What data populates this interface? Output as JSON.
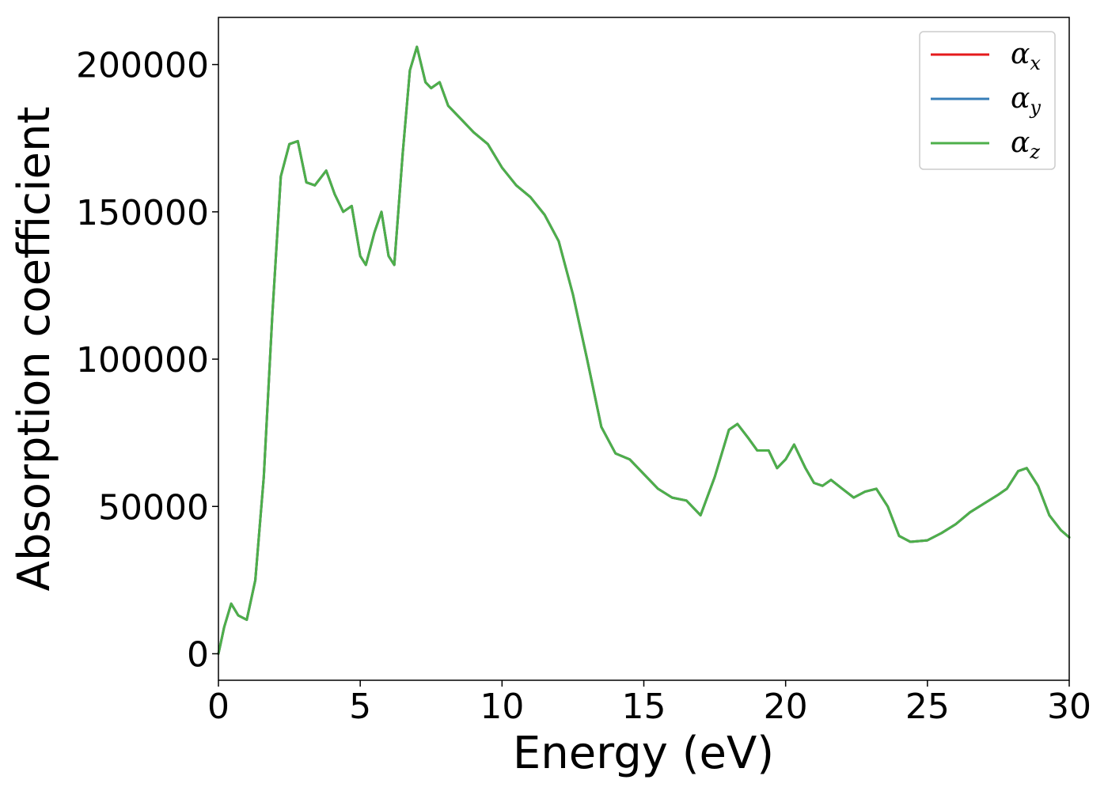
{
  "chart_data": {
    "type": "line",
    "xlabel": "Energy (eV)",
    "ylabel": "Absorption coefficient",
    "xlim": [
      0,
      30
    ],
    "ylim": [
      -9000,
      216000
    ],
    "xticks": [
      0,
      5,
      10,
      15,
      20,
      25,
      30
    ],
    "yticks": [
      0,
      50000,
      100000,
      150000,
      200000
    ],
    "grid": false,
    "legend_position": "top-right",
    "series": [
      {
        "name": "α",
        "subscript": "x",
        "color": "#e41a1c"
      },
      {
        "name": "α",
        "subscript": "y",
        "color": "#377eb8"
      },
      {
        "name": "α",
        "subscript": "z",
        "color": "#4daf4a"
      }
    ],
    "x": [
      0,
      0.2,
      0.45,
      0.7,
      1.0,
      1.3,
      1.6,
      1.9,
      2.2,
      2.5,
      2.8,
      3.1,
      3.4,
      3.8,
      4.1,
      4.4,
      4.7,
      5.0,
      5.2,
      5.5,
      5.75,
      6.0,
      6.2,
      6.5,
      6.75,
      7.0,
      7.3,
      7.5,
      7.8,
      8.1,
      8.5,
      9.0,
      9.5,
      10.0,
      10.5,
      11.0,
      11.5,
      12.0,
      12.5,
      13.0,
      13.5,
      14.0,
      14.5,
      15.0,
      15.5,
      16.0,
      16.5,
      17.0,
      17.5,
      18.0,
      18.3,
      18.7,
      19.0,
      19.4,
      19.7,
      20.0,
      20.3,
      20.7,
      21.0,
      21.3,
      21.6,
      22.0,
      22.4,
      22.8,
      23.2,
      23.6,
      24.0,
      24.4,
      25.0,
      25.5,
      26.0,
      26.5,
      27.0,
      27.5,
      27.8,
      28.2,
      28.5,
      28.9,
      29.3,
      29.7,
      30.0
    ],
    "values": [
      0,
      9000,
      17000,
      13000,
      11500,
      25000,
      60000,
      115000,
      162000,
      173000,
      174000,
      160000,
      159000,
      164000,
      156000,
      150000,
      152000,
      135000,
      132000,
      143000,
      150000,
      135000,
      132000,
      170000,
      198000,
      206000,
      194000,
      192000,
      194000,
      186000,
      182000,
      177000,
      173000,
      165000,
      159000,
      155000,
      149000,
      140000,
      122000,
      100000,
      77000,
      68000,
      66000,
      61000,
      56000,
      53000,
      52000,
      47000,
      60000,
      76000,
      78000,
      73000,
      69000,
      69000,
      63000,
      66000,
      71000,
      63000,
      58000,
      57000,
      59000,
      56000,
      53000,
      55000,
      56000,
      50000,
      40000,
      38000,
      38500,
      41000,
      44000,
      48000,
      51000,
      54000,
      56000,
      62000,
      63000,
      57000,
      47000,
      42000,
      39500
    ]
  }
}
